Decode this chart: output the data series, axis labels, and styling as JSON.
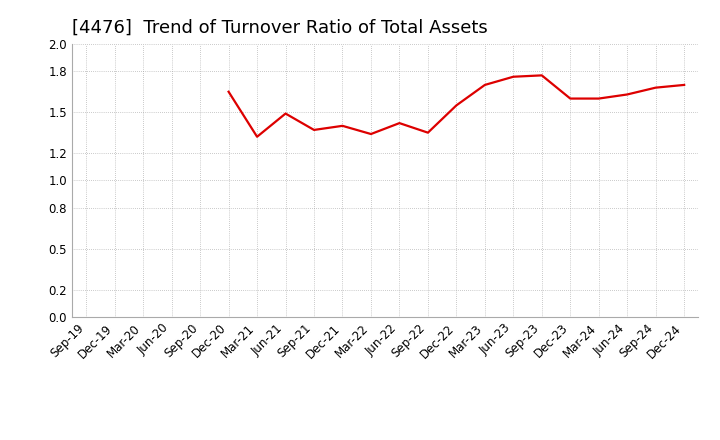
{
  "title": "[4476]  Trend of Turnover Ratio of Total Assets",
  "line_color": "#dd0000",
  "background_color": "#ffffff",
  "grid_color": "#999999",
  "ylim": [
    0.0,
    2.0
  ],
  "yticks": [
    0.0,
    0.2,
    0.5,
    0.8,
    1.0,
    1.2,
    1.5,
    1.8,
    2.0
  ],
  "x_labels": [
    "Sep-19",
    "Dec-19",
    "Mar-20",
    "Jun-20",
    "Sep-20",
    "Dec-20",
    "Mar-21",
    "Jun-21",
    "Sep-21",
    "Dec-21",
    "Mar-22",
    "Jun-22",
    "Sep-22",
    "Dec-22",
    "Mar-23",
    "Jun-23",
    "Sep-23",
    "Dec-23",
    "Mar-24",
    "Jun-24",
    "Sep-24",
    "Dec-24"
  ],
  "values_raw": [
    null,
    null,
    null,
    null,
    null,
    1.65,
    1.32,
    1.49,
    1.37,
    1.4,
    1.34,
    1.42,
    1.35,
    1.55,
    1.7,
    1.76,
    1.77,
    1.6,
    1.6,
    1.63,
    1.68,
    1.7
  ],
  "title_fontsize": 13,
  "tick_fontsize": 8.5,
  "line_width": 1.6
}
